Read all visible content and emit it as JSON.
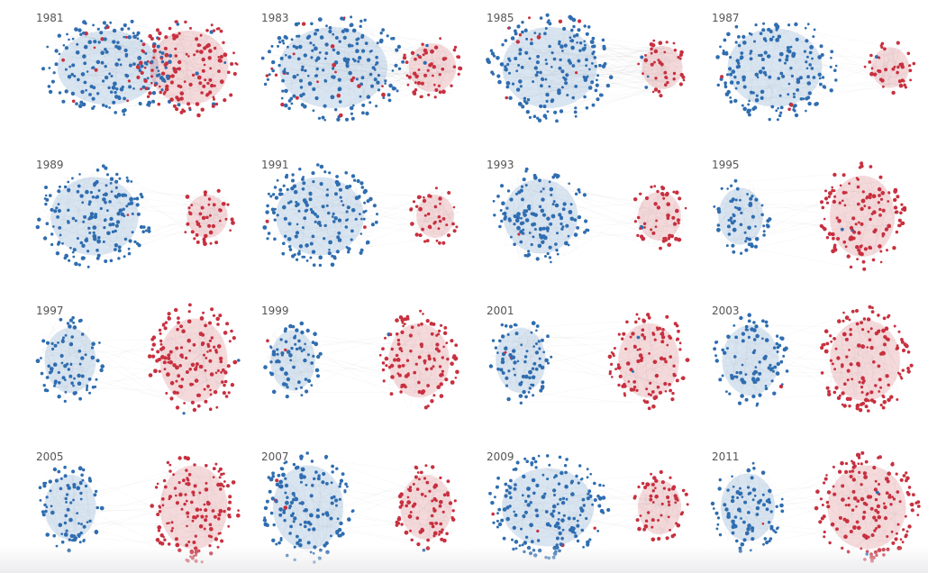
{
  "colors": {
    "party_a": "#2f6db0",
    "party_b": "#c8303f",
    "edge": "#999999"
  },
  "panels": [
    {
      "year": "1981"
    },
    {
      "year": "1983"
    },
    {
      "year": "1985"
    },
    {
      "year": "1987"
    },
    {
      "year": "1989"
    },
    {
      "year": "1991"
    },
    {
      "year": "1993"
    },
    {
      "year": "1995"
    },
    {
      "year": "1997"
    },
    {
      "year": "1999"
    },
    {
      "year": "2001"
    },
    {
      "year": "2003"
    },
    {
      "year": "2005"
    },
    {
      "year": "2007"
    },
    {
      "year": "2009"
    },
    {
      "year": "2011"
    }
  ]
}
